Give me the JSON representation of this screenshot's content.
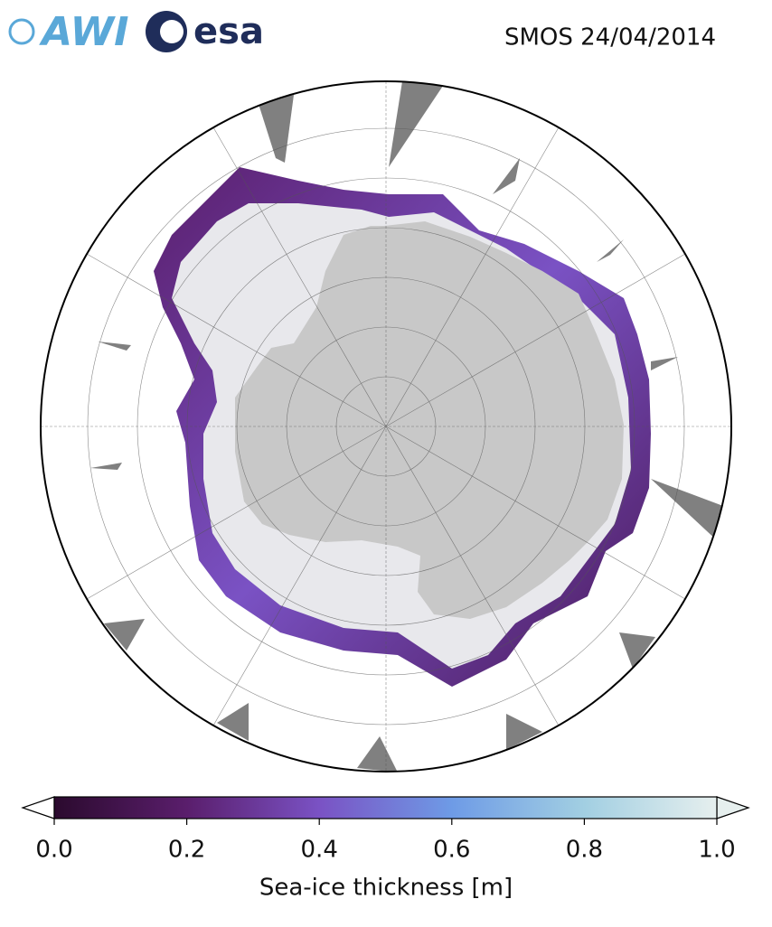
{
  "header": {
    "logos": [
      "AWI",
      "esa"
    ],
    "title": "SMOS 24/04/2014"
  },
  "colorbar": {
    "label": "Sea-ice thickness [m]",
    "lim": [
      0,
      1
    ],
    "ticks": [
      {
        "value": 0,
        "label": "0.0"
      },
      0.2,
      0.4,
      0.6,
      0.8,
      {
        "value": 1,
        "label": "1.0"
      }
    ],
    "colors": [
      "#2b0a2e",
      "#5a1e6c",
      "#7a52c4",
      "#6e9be6",
      "#a2cfe2",
      "#e6efee"
    ],
    "under_color": "#ffffff",
    "over_color": "#e6efee"
  }
}
